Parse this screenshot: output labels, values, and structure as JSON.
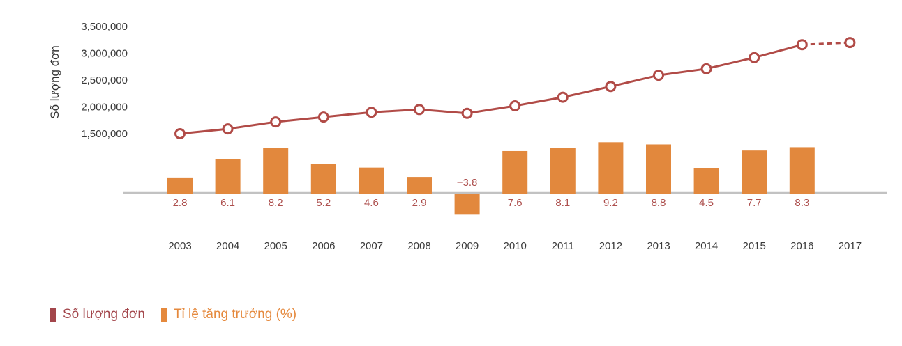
{
  "chart": {
    "y_axis_title": "Số lượng đơn",
    "y_ticks": [
      {
        "value": 3500000,
        "label": "3,500,000"
      },
      {
        "value": 3000000,
        "label": "3,000,000"
      },
      {
        "value": 2500000,
        "label": "2,500,000"
      },
      {
        "value": 2000000,
        "label": "2,000,000"
      },
      {
        "value": 1500000,
        "label": "1,500,000"
      }
    ],
    "colors": {
      "line": "#B14B47",
      "bar": "#E2883D",
      "bar_label": "#AD4F4D",
      "axis_baseline": "#C2C2C2",
      "axis_text": "#3A3A3A"
    }
  },
  "chart_data": {
    "type": "combo",
    "categories": [
      "2003",
      "2004",
      "2005",
      "2006",
      "2007",
      "2008",
      "2009",
      "2010",
      "2011",
      "2012",
      "2013",
      "2014",
      "2015",
      "2016",
      "2017"
    ],
    "series": [
      {
        "name": "Số lượng đơn",
        "type": "line",
        "color": "#B14B47",
        "marker": "open-circle",
        "values": [
          1500000,
          1590000,
          1720000,
          1810000,
          1900000,
          1950000,
          1880000,
          2020000,
          2180000,
          2380000,
          2590000,
          2710000,
          2920000,
          3160000,
          3200000
        ],
        "dashed_segment": {
          "from": "2016",
          "to": "2017"
        }
      },
      {
        "name": "Tỉ lệ tăng trưởng (%)",
        "type": "bar",
        "color": "#E2883D",
        "values": [
          2.8,
          6.1,
          8.2,
          5.2,
          4.6,
          2.9,
          -3.8,
          7.6,
          8.1,
          9.2,
          8.8,
          4.5,
          7.7,
          8.3,
          null
        ],
        "labels": [
          "2.8",
          "6.1",
          "8.2",
          "5.2",
          "4.6",
          "2.9",
          "−3.8",
          "7.6",
          "8.1",
          "9.2",
          "8.8",
          "4.5",
          "7.7",
          "8.3",
          ""
        ]
      }
    ],
    "ylabel": "Số lượng đơn",
    "y_axis_labeled_range": [
      1500000,
      3500000
    ],
    "grid": false,
    "legend_position": "bottom-left"
  },
  "legend": {
    "items": [
      {
        "label": "Số lượng đơn",
        "color": "#A3464B"
      },
      {
        "label": "Tỉ lệ tăng trưởng (%)",
        "color": "#E5893D"
      }
    ]
  }
}
